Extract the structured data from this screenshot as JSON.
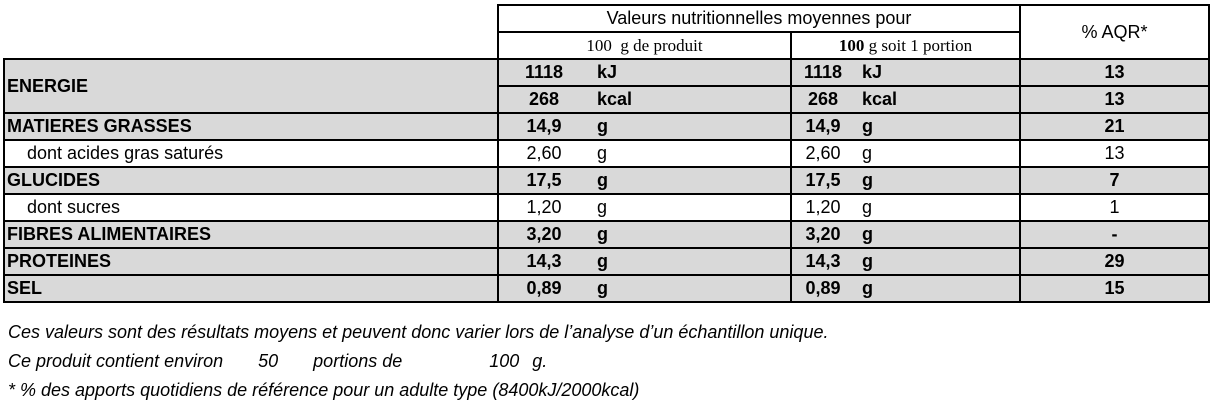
{
  "header": {
    "title": "Valeurs nutritionnelles moyennes pour",
    "col1_qty": "100",
    "col1_unit": "g de produit",
    "col2_qty": "100",
    "col2_unit": "g soit 1 portion",
    "aqr": "% AQR*"
  },
  "rows": [
    {
      "label": "ENERGIE",
      "v1": "1118",
      "u1": "kJ",
      "v2": "1118",
      "u2": "kJ",
      "aqr": "13"
    },
    {
      "label": "",
      "v1": "268",
      "u1": "kcal",
      "v2": "268",
      "u2": "kcal",
      "aqr": "13"
    },
    {
      "label": "MATIERES GRASSES",
      "v1": "14,9",
      "u1": "g",
      "v2": "14,9",
      "u2": "g",
      "aqr": "21"
    },
    {
      "label": "dont acides gras saturés",
      "v1": "2,60",
      "u1": "g",
      "v2": "2,60",
      "u2": "g",
      "aqr": "13"
    },
    {
      "label": "GLUCIDES",
      "v1": "17,5",
      "u1": "g",
      "v2": "17,5",
      "u2": "g",
      "aqr": "7"
    },
    {
      "label": "dont sucres",
      "v1": "1,20",
      "u1": "g",
      "v2": "1,20",
      "u2": "g",
      "aqr": "1"
    },
    {
      "label": "FIBRES ALIMENTAIRES",
      "v1": "3,20",
      "u1": "g",
      "v2": "3,20",
      "u2": "g",
      "aqr": "-"
    },
    {
      "label": "PROTEINES",
      "v1": "14,3",
      "u1": "g",
      "v2": "14,3",
      "u2": "g",
      "aqr": "29"
    },
    {
      "label": "SEL",
      "v1": "0,89",
      "u1": "g",
      "v2": "0,89",
      "u2": "g",
      "aqr": "15"
    }
  ],
  "notes": {
    "line1": "Ces valeurs sont des résultats moyens et peuvent donc varier lors de l’analyse d’un échantillon unique.",
    "line2_a": "Ce produit contient environ",
    "line2_portions": "50",
    "line2_b": "portions de",
    "line2_qty": "100",
    "line2_unit": "g.",
    "line3": "* % des apports quotidiens de référence pour un adulte type (8400kJ/2000kcal)"
  },
  "colors": {
    "row_shade": "#d9d9d9",
    "border": "#000000",
    "background": "#ffffff"
  }
}
